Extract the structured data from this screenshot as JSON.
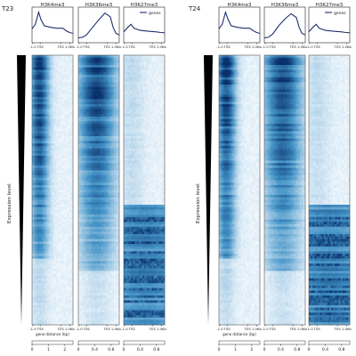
{
  "chart_data": [
    {
      "type": "heatmap",
      "sample_label": "T23",
      "marks": [
        "H3K4me3",
        "H3K36me3",
        "H3K27me3"
      ],
      "legend": "genes",
      "x_ticks": [
        "-1.0",
        "TSS",
        "TES",
        "1.0Kb"
      ],
      "xlabel": "gene distance (bp)",
      "ylabel": "Expression level",
      "colorbars": [
        {
          "ticks": [
            "0",
            "1",
            "2"
          ],
          "range": [
            0,
            2.5
          ]
        },
        {
          "ticks": [
            "0",
            "0.4",
            "0.8"
          ],
          "range": [
            0,
            1.0
          ]
        },
        {
          "ticks": [
            "0",
            "0.4",
            "0.8"
          ],
          "range": [
            0,
            1.0
          ]
        }
      ],
      "profiles": [
        {
          "name": "H3K4me3",
          "x": [
            0,
            0.08,
            0.16,
            0.22,
            0.3,
            0.45,
            0.6,
            0.75,
            0.85,
            0.92,
            1.0
          ],
          "y": [
            0.4,
            0.55,
            0.95,
            0.7,
            0.5,
            0.45,
            0.42,
            0.42,
            0.32,
            0.28,
            0.25
          ]
        },
        {
          "name": "H3K36me3",
          "x": [
            0,
            0.1,
            0.2,
            0.35,
            0.5,
            0.65,
            0.78,
            0.85,
            0.92,
            1.0
          ],
          "y": [
            0.1,
            0.12,
            0.2,
            0.45,
            0.7,
            0.92,
            0.8,
            0.45,
            0.25,
            0.2
          ]
        },
        {
          "name": "H3K27me3",
          "x": [
            0,
            0.1,
            0.18,
            0.25,
            0.4,
            0.6,
            0.8,
            0.9,
            1.0
          ],
          "y": [
            0.3,
            0.45,
            0.55,
            0.42,
            0.35,
            0.32,
            0.3,
            0.28,
            0.27
          ]
        }
      ],
      "heatmaps": [
        {
          "mark": "H3K4me3",
          "bands": [
            {
              "from": 0,
              "to": 0.75,
              "center": 0.18,
              "width": 0.22,
              "strength": 0.95,
              "decay": 0.55
            },
            {
              "from": 0.75,
              "to": 1,
              "center": 0.18,
              "width": 0.2,
              "strength": 0.15,
              "decay": 0.3
            }
          ],
          "background": 0.05
        },
        {
          "mark": "H3K36me3",
          "bands": [
            {
              "from": 0,
              "to": 0.8,
              "center": 0.45,
              "width": 0.45,
              "strength": 0.9,
              "decay": 0.6
            },
            {
              "from": 0.8,
              "to": 1,
              "center": 0.45,
              "width": 0.35,
              "strength": 0.12,
              "decay": 0.3
            }
          ],
          "background": 0.04
        },
        {
          "mark": "H3K27me3",
          "bands": [
            {
              "from": 0,
              "to": 0.55,
              "center": 0.2,
              "width": 0.3,
              "strength": 0.12,
              "decay": 0.2
            },
            {
              "from": 0.55,
              "to": 1,
              "center": 0.5,
              "width": 1.2,
              "strength": 0.55,
              "decay": 0.0
            }
          ],
          "background": 0.05,
          "striped_from": 0.6
        }
      ]
    },
    {
      "type": "heatmap",
      "sample_label": "T24",
      "marks": [
        "H3K4me3",
        "H3K36me3",
        "H3K27me3"
      ],
      "legend": "genes",
      "x_ticks": [
        "-1.0",
        "TSS",
        "TES",
        "1.0Kb"
      ],
      "xlabel": "gene distance (bp)",
      "ylabel": "Expression level",
      "colorbars": [
        {
          "ticks": [
            "0",
            "1",
            "2"
          ],
          "range": [
            0,
            2.5
          ]
        },
        {
          "ticks": [
            "0",
            "0.4",
            "0.8"
          ],
          "range": [
            0,
            1.0
          ]
        },
        {
          "ticks": [
            "0",
            "0.4",
            "0.8"
          ],
          "range": [
            0,
            1.0
          ]
        }
      ],
      "profiles": [
        {
          "name": "H3K4me3",
          "x": [
            0,
            0.08,
            0.16,
            0.22,
            0.3,
            0.45,
            0.6,
            0.75,
            0.85,
            0.92,
            1.0
          ],
          "y": [
            0.4,
            0.55,
            0.95,
            0.72,
            0.5,
            0.45,
            0.42,
            0.42,
            0.33,
            0.28,
            0.25
          ]
        },
        {
          "name": "H3K36me3",
          "x": [
            0,
            0.1,
            0.2,
            0.35,
            0.5,
            0.65,
            0.78,
            0.85,
            0.92,
            1.0
          ],
          "y": [
            0.1,
            0.12,
            0.22,
            0.5,
            0.72,
            0.9,
            0.78,
            0.45,
            0.25,
            0.2
          ]
        },
        {
          "name": "H3K27me3",
          "x": [
            0,
            0.1,
            0.18,
            0.25,
            0.4,
            0.6,
            0.8,
            0.9,
            1.0
          ],
          "y": [
            0.3,
            0.45,
            0.55,
            0.42,
            0.35,
            0.32,
            0.3,
            0.28,
            0.27
          ]
        }
      ],
      "heatmaps": [
        {
          "mark": "H3K4me3",
          "bands": [
            {
              "from": 0,
              "to": 0.75,
              "center": 0.18,
              "width": 0.22,
              "strength": 0.95,
              "decay": 0.5
            },
            {
              "from": 0.75,
              "to": 1,
              "center": 0.18,
              "width": 0.2,
              "strength": 0.15,
              "decay": 0.3
            }
          ],
          "background": 0.05
        },
        {
          "mark": "H3K36me3",
          "bands": [
            {
              "from": 0,
              "to": 0.8,
              "center": 0.45,
              "width": 0.45,
              "strength": 0.9,
              "decay": 0.6
            },
            {
              "from": 0.8,
              "to": 1,
              "center": 0.45,
              "width": 0.35,
              "strength": 0.12,
              "decay": 0.3
            }
          ],
          "background": 0.04
        },
        {
          "mark": "H3K27me3",
          "bands": [
            {
              "from": 0,
              "to": 0.55,
              "center": 0.2,
              "width": 0.3,
              "strength": 0.12,
              "decay": 0.2
            },
            {
              "from": 0.55,
              "to": 1,
              "center": 0.5,
              "width": 1.2,
              "strength": 0.55,
              "decay": 0.0
            }
          ],
          "background": 0.05,
          "striped_from": 0.6
        }
      ]
    }
  ],
  "colors": {
    "heat_low": "#f7fbff",
    "heat_high": "#08306b",
    "profile": "#1f2f6b",
    "wedge": "#000000"
  }
}
